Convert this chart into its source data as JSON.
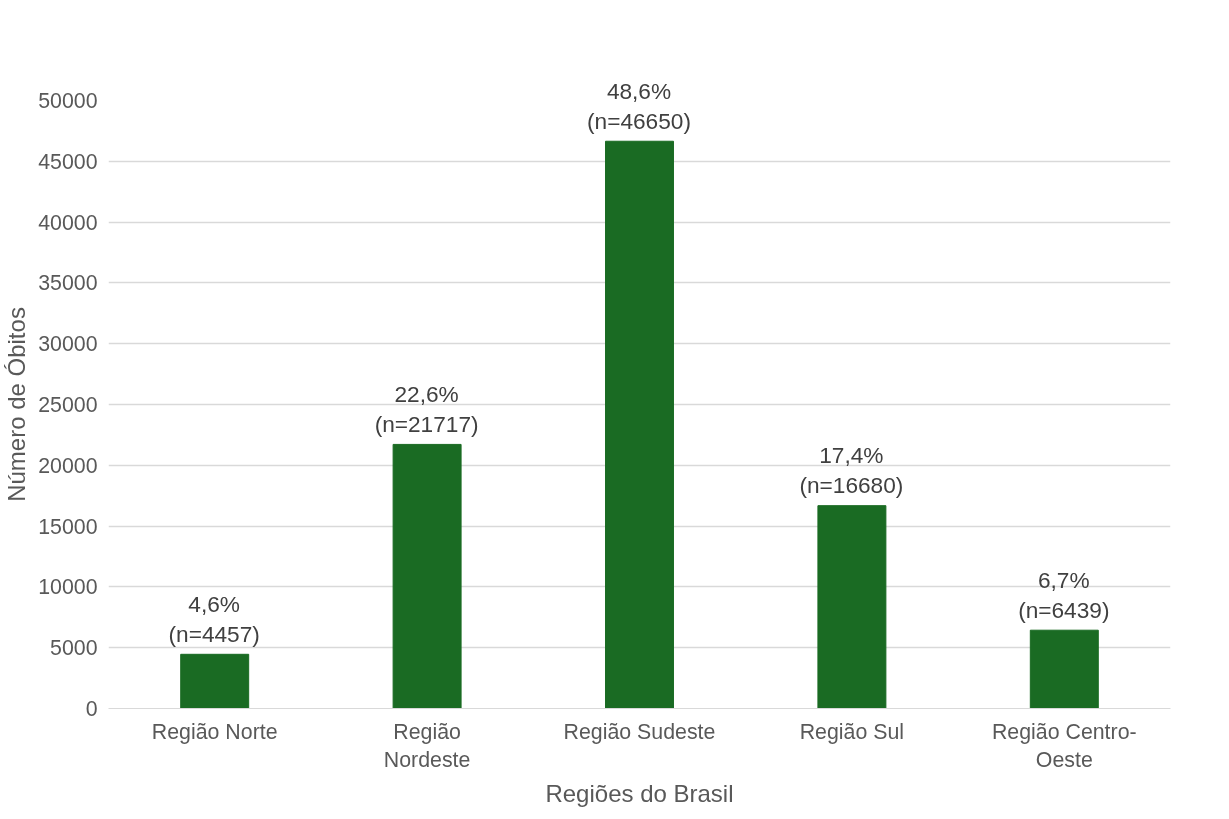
{
  "chart_data": {
    "type": "bar",
    "xlabel": "Regiões do Brasil",
    "ylabel": "Número de Óbitos",
    "categories": [
      "Região Norte",
      "Região Nordeste",
      "Região Sudeste",
      "Região Sul",
      "Região Centro-Oeste"
    ],
    "values": [
      4457,
      21717,
      46650,
      16680,
      6439
    ],
    "value_labels": [
      "4,6%\n(n=4457)",
      "22,6%\n(n=21717)",
      "48,6%\n(n=46650)",
      "17,4%\n(n=16680)",
      "6,7%\n(n=6439)"
    ],
    "color": "#1a6b23",
    "ylim": [
      0,
      50000
    ],
    "yticks": [
      0,
      5000,
      10000,
      15000,
      20000,
      25000,
      30000,
      35000,
      40000,
      45000,
      50000
    ],
    "grid": "y"
  }
}
